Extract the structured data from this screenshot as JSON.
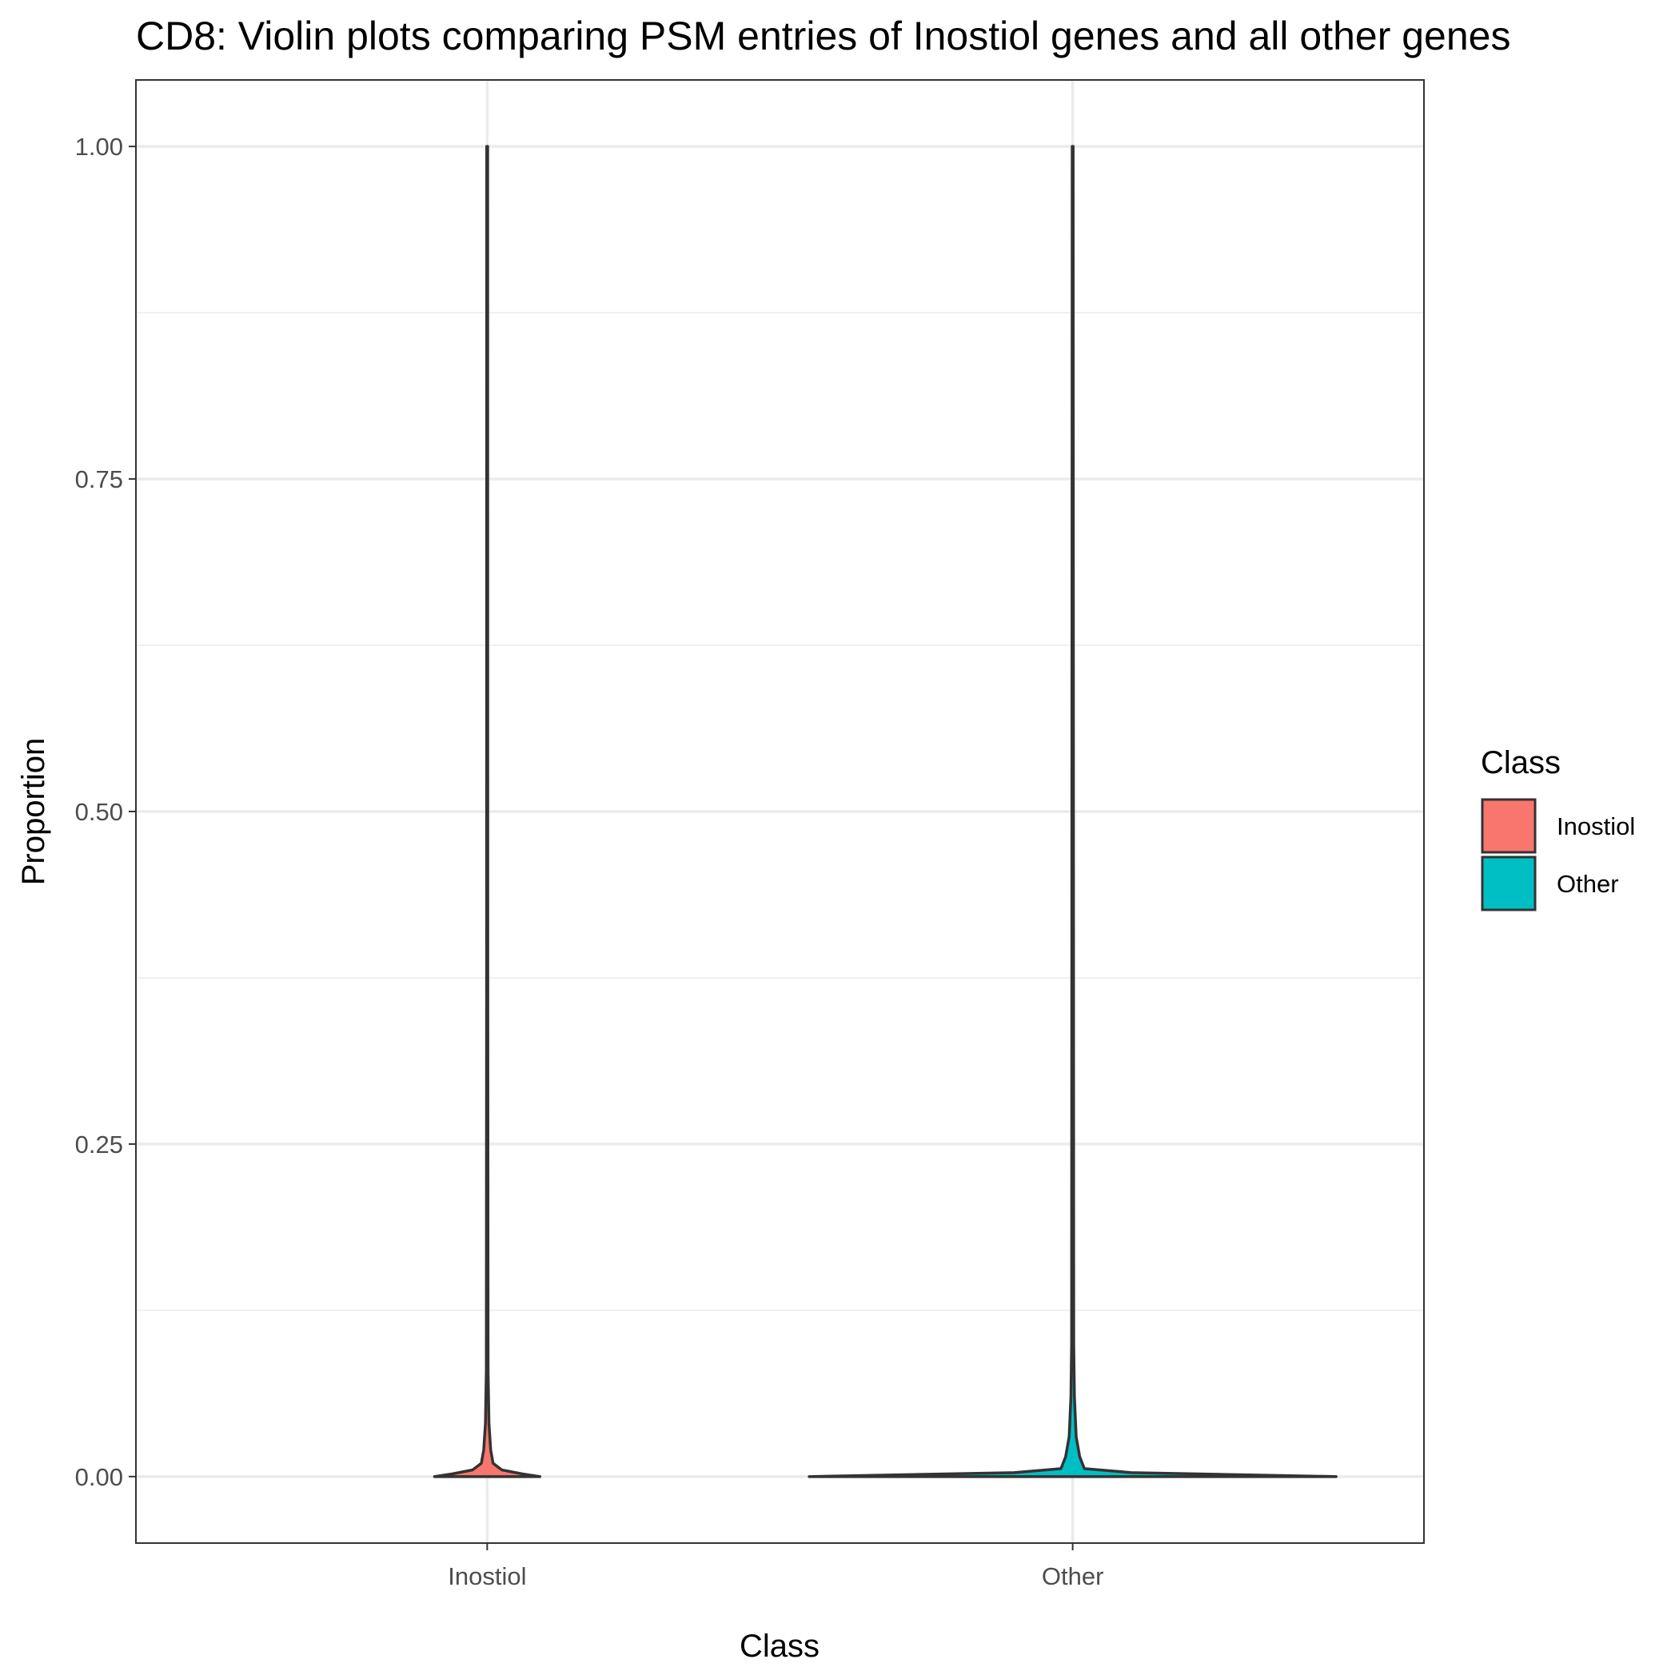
{
  "chart_data": {
    "type": "violin",
    "title": "CD8: Violin plots comparing PSM entries of Inostiol genes and all other genes",
    "xlabel": "Class",
    "ylabel": "Proportion",
    "ylim": [
      -0.05,
      1.05
    ],
    "y_ticks": [
      0.0,
      0.25,
      0.5,
      0.75,
      1.0
    ],
    "y_tick_labels": [
      "0.00",
      "0.25",
      "0.50",
      "0.75",
      "1.00"
    ],
    "categories": [
      "Inostiol",
      "Other"
    ],
    "grid": true,
    "legend": {
      "title": "Class",
      "position": "right",
      "entries": [
        "Inostiol",
        "Other"
      ]
    },
    "series": [
      {
        "name": "Inostiol",
        "color": "#F8766D",
        "y_range": [
          0.0,
          1.0
        ],
        "density_profile": [
          {
            "y": 0.0,
            "half_width": 0.09
          },
          {
            "y": 0.002,
            "half_width": 0.06
          },
          {
            "y": 0.005,
            "half_width": 0.025
          },
          {
            "y": 0.01,
            "half_width": 0.01
          },
          {
            "y": 0.02,
            "half_width": 0.006
          },
          {
            "y": 0.04,
            "half_width": 0.003
          },
          {
            "y": 0.08,
            "half_width": 0.0015
          },
          {
            "y": 0.38,
            "half_width": 0.001
          },
          {
            "y": 1.0,
            "half_width": 0.0008
          }
        ]
      },
      {
        "name": "Other",
        "color": "#00BFC4",
        "y_range": [
          0.0,
          1.0
        ],
        "density_profile": [
          {
            "y": 0.0,
            "half_width": 0.45
          },
          {
            "y": 0.003,
            "half_width": 0.1
          },
          {
            "y": 0.006,
            "half_width": 0.02
          },
          {
            "y": 0.015,
            "half_width": 0.012
          },
          {
            "y": 0.03,
            "half_width": 0.006
          },
          {
            "y": 0.06,
            "half_width": 0.003
          },
          {
            "y": 0.1,
            "half_width": 0.0018
          },
          {
            "y": 1.0,
            "half_width": 0.0008
          }
        ]
      }
    ]
  }
}
